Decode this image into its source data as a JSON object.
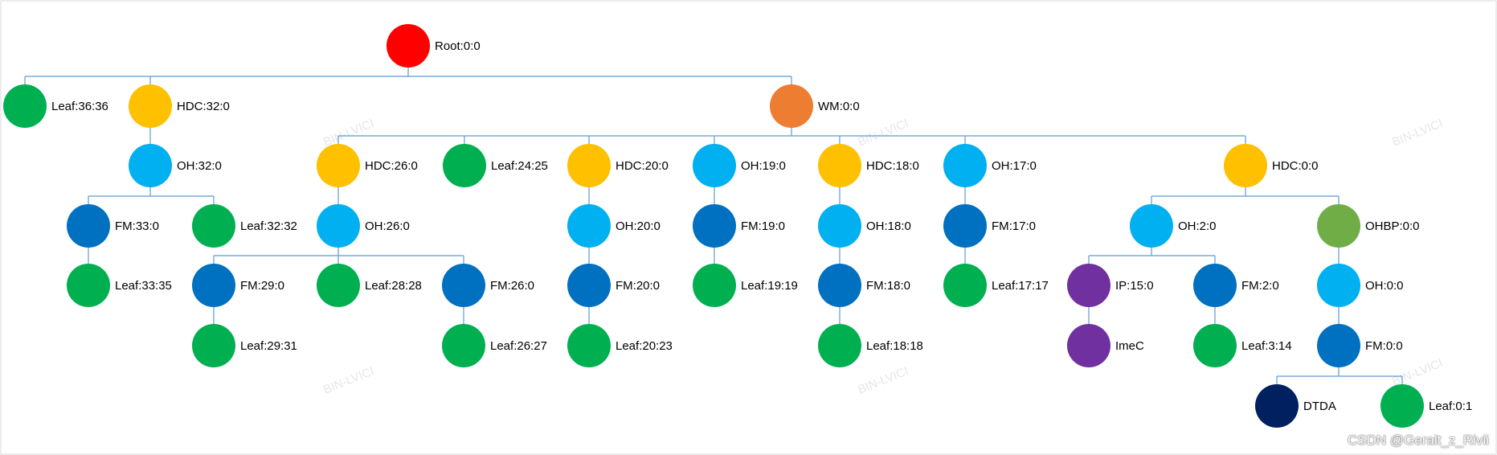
{
  "colors": {
    "red": "#ff0000",
    "orange": "#ed7d31",
    "yellow": "#ffc000",
    "green": "#00b050",
    "lightblue": "#00b0f0",
    "blue": "#0070c0",
    "purple": "#7030a0",
    "olive": "#70ad47",
    "navy": "#002060",
    "edge": "#5b9bd5",
    "frame": "#d9d9d9"
  },
  "nodes": [
    {
      "id": "root",
      "label": "Root:0:0",
      "color": "red",
      "parent": null
    },
    {
      "id": "leaf36",
      "label": "Leaf:36:36",
      "color": "green",
      "parent": "root"
    },
    {
      "id": "hdc32",
      "label": "HDC:32:0",
      "color": "yellow",
      "parent": "root"
    },
    {
      "id": "wm",
      "label": "WM:0:0",
      "color": "orange",
      "parent": "root"
    },
    {
      "id": "oh32",
      "label": "OH:32:0",
      "color": "lightblue",
      "parent": "hdc32"
    },
    {
      "id": "fm33",
      "label": "FM:33:0",
      "color": "blue",
      "parent": "oh32"
    },
    {
      "id": "leaf3232",
      "label": "Leaf:32:32",
      "color": "green",
      "parent": "oh32"
    },
    {
      "id": "leaf3335",
      "label": "Leaf:33:35",
      "color": "green",
      "parent": "fm33"
    },
    {
      "id": "hdc26",
      "label": "HDC:26:0",
      "color": "yellow",
      "parent": "wm"
    },
    {
      "id": "leaf2425",
      "label": "Leaf:24:25",
      "color": "green",
      "parent": "wm"
    },
    {
      "id": "hdc20",
      "label": "HDC:20:0",
      "color": "yellow",
      "parent": "wm"
    },
    {
      "id": "oh19",
      "label": "OH:19:0",
      "color": "lightblue",
      "parent": "wm"
    },
    {
      "id": "hdc18",
      "label": "HDC:18:0",
      "color": "yellow",
      "parent": "wm"
    },
    {
      "id": "oh17",
      "label": "OH:17:0",
      "color": "lightblue",
      "parent": "wm"
    },
    {
      "id": "hdc0",
      "label": "HDC:0:0",
      "color": "yellow",
      "parent": "wm"
    },
    {
      "id": "oh26",
      "label": "OH:26:0",
      "color": "lightblue",
      "parent": "hdc26"
    },
    {
      "id": "fm29",
      "label": "FM:29:0",
      "color": "blue",
      "parent": "oh26"
    },
    {
      "id": "leaf2828",
      "label": "Leaf:28:28",
      "color": "green",
      "parent": "oh26"
    },
    {
      "id": "fm26",
      "label": "FM:26:0",
      "color": "blue",
      "parent": "oh26"
    },
    {
      "id": "leaf2931",
      "label": "Leaf:29:31",
      "color": "green",
      "parent": "fm29"
    },
    {
      "id": "leaf2627",
      "label": "Leaf:26:27",
      "color": "green",
      "parent": "fm26"
    },
    {
      "id": "oh20",
      "label": "OH:20:0",
      "color": "lightblue",
      "parent": "hdc20"
    },
    {
      "id": "fm20",
      "label": "FM:20:0",
      "color": "blue",
      "parent": "oh20"
    },
    {
      "id": "leaf2023",
      "label": "Leaf:20:23",
      "color": "green",
      "parent": "fm20"
    },
    {
      "id": "fm19",
      "label": "FM:19:0",
      "color": "blue",
      "parent": "oh19"
    },
    {
      "id": "leaf1919",
      "label": "Leaf:19:19",
      "color": "green",
      "parent": "fm19"
    },
    {
      "id": "oh18",
      "label": "OH:18:0",
      "color": "lightblue",
      "parent": "hdc18"
    },
    {
      "id": "fm18",
      "label": "FM:18:0",
      "color": "blue",
      "parent": "oh18"
    },
    {
      "id": "leaf1818",
      "label": "Leaf:18:18",
      "color": "green",
      "parent": "fm18"
    },
    {
      "id": "fm17",
      "label": "FM:17:0",
      "color": "blue",
      "parent": "oh17"
    },
    {
      "id": "leaf1717",
      "label": "Leaf:17:17",
      "color": "green",
      "parent": "fm17"
    },
    {
      "id": "oh2",
      "label": "OH:2:0",
      "color": "lightblue",
      "parent": "hdc0"
    },
    {
      "id": "ohbp",
      "label": "OHBP:0:0",
      "color": "olive",
      "parent": "hdc0"
    },
    {
      "id": "ip15",
      "label": "IP:15:0",
      "color": "purple",
      "parent": "oh2"
    },
    {
      "id": "fm2",
      "label": "FM:2:0",
      "color": "blue",
      "parent": "oh2"
    },
    {
      "id": "imec",
      "label": "ImeC",
      "color": "purple",
      "parent": "ip15"
    },
    {
      "id": "leaf314",
      "label": "Leaf:3:14",
      "color": "green",
      "parent": "fm2"
    },
    {
      "id": "oh0",
      "label": "OH:0:0",
      "color": "lightblue",
      "parent": "ohbp"
    },
    {
      "id": "fm0",
      "label": "FM:0:0",
      "color": "blue",
      "parent": "oh0"
    },
    {
      "id": "dtda",
      "label": "DTDA",
      "color": "navy",
      "parent": "fm0"
    },
    {
      "id": "leaf01",
      "label": "Leaf:0:1",
      "color": "green",
      "parent": "fm0"
    }
  ],
  "watermark_text": "BIN-LVICI",
  "credit": "CSDN @Geralt_z_Rivii"
}
